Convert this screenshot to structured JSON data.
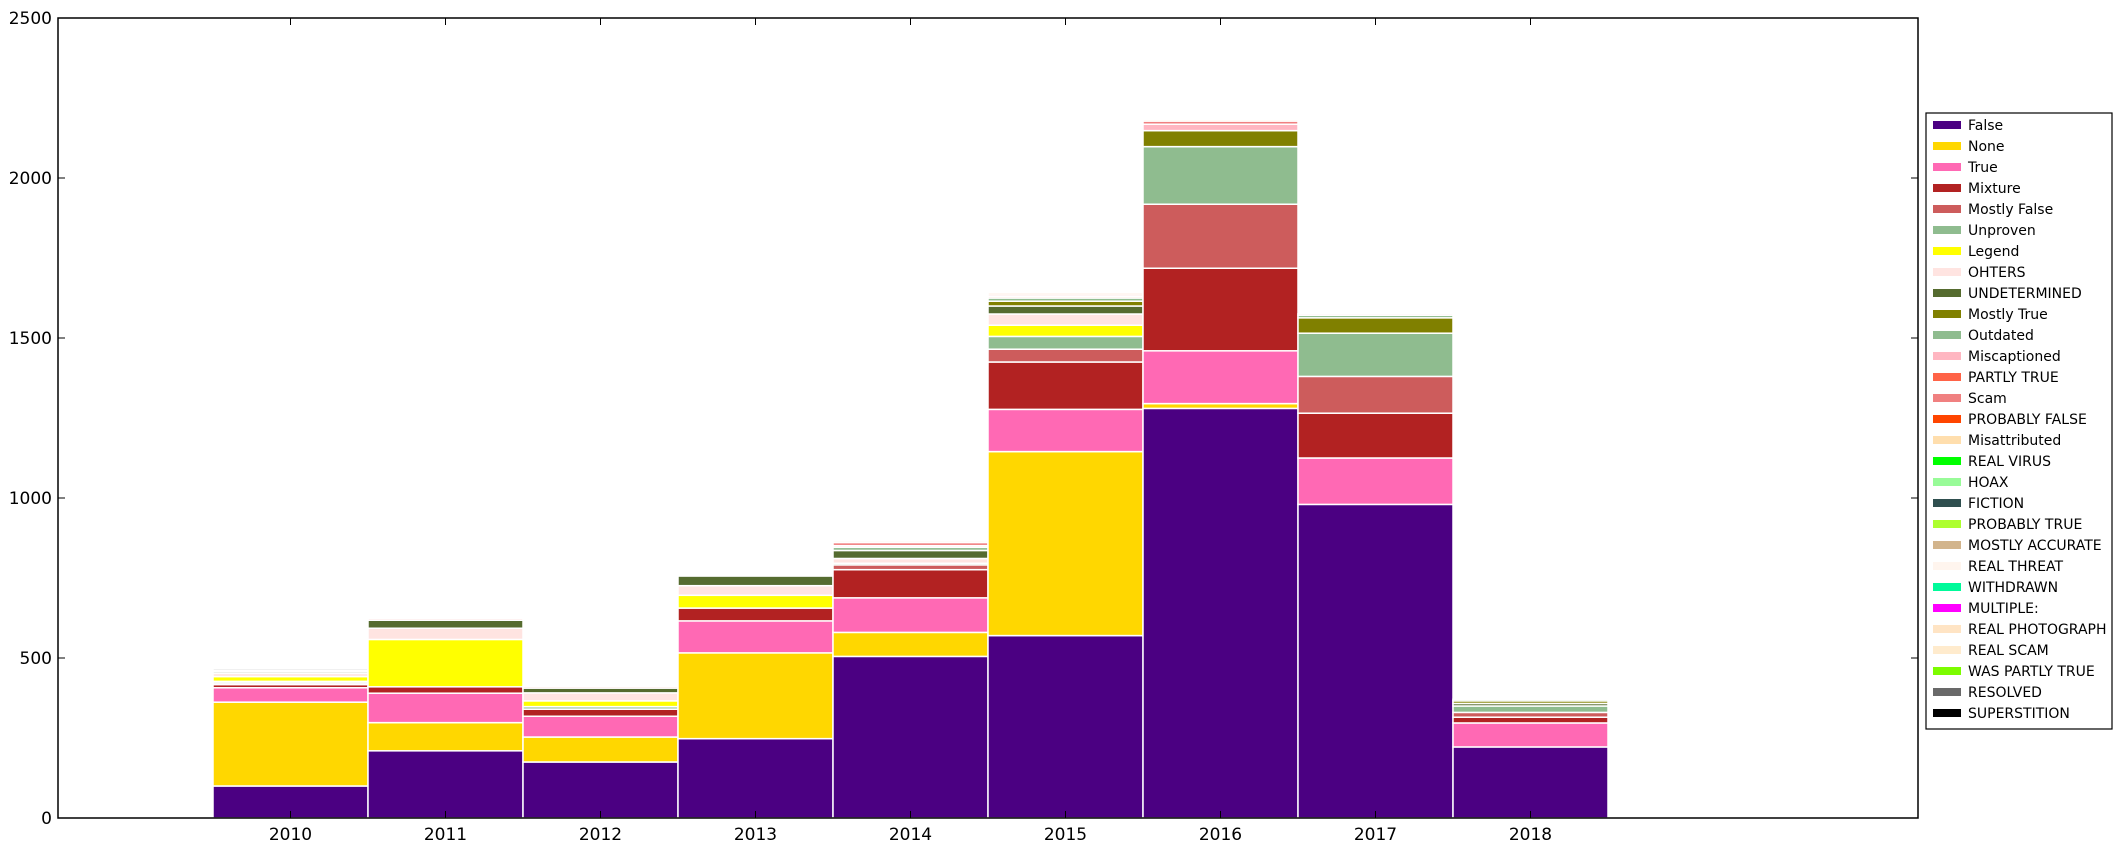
{
  "chart_data": {
    "type": "bar",
    "stacked": true,
    "categories": [
      "2010",
      "2011",
      "2012",
      "2013",
      "2014",
      "2015",
      "2016",
      "2017",
      "2018"
    ],
    "yticks": [
      0,
      500,
      1000,
      1500,
      2000,
      2500
    ],
    "ylim": [
      0,
      2500
    ],
    "xlim_categories_padding": "1.5 empty slots left, 1.5 empty slots right",
    "legend_position": "right",
    "grid": false,
    "series": [
      {
        "name": "False",
        "color": "#4b0082",
        "values": [
          100,
          210,
          175,
          248,
          505,
          570,
          1280,
          980,
          222
        ]
      },
      {
        "name": "None",
        "color": "#ffd700",
        "values": [
          262,
          88,
          78,
          268,
          75,
          575,
          15,
          0,
          0
        ]
      },
      {
        "name": "True",
        "color": "#ff69b4",
        "values": [
          45,
          92,
          65,
          100,
          108,
          132,
          165,
          145,
          75
        ]
      },
      {
        "name": "Mixture",
        "color": "#b22222",
        "values": [
          10,
          20,
          22,
          40,
          88,
          148,
          258,
          140,
          18
        ]
      },
      {
        "name": "Mostly False",
        "color": "#cd5c5c",
        "values": [
          5,
          0,
          0,
          0,
          15,
          40,
          200,
          115,
          15
        ]
      },
      {
        "name": "Unproven",
        "color": "#8fbc8f",
        "values": [
          5,
          0,
          8,
          0,
          5,
          40,
          180,
          135,
          20
        ]
      },
      {
        "name": "Legend",
        "color": "#ffff00",
        "values": [
          15,
          148,
          18,
          40,
          0,
          35,
          0,
          0,
          0
        ]
      },
      {
        "name": "OHTERS",
        "color": "#ffe4e1",
        "values": [
          10,
          35,
          25,
          30,
          15,
          35,
          0,
          0,
          0
        ]
      },
      {
        "name": "UNDETERMINED",
        "color": "#556b2f",
        "values": [
          5,
          25,
          15,
          30,
          25,
          25,
          0,
          0,
          8
        ]
      },
      {
        "name": "Mostly True",
        "color": "#808000",
        "values": [
          0,
          0,
          0,
          0,
          0,
          15,
          50,
          48,
          8
        ]
      },
      {
        "name": "Outdated",
        "color": "#8fbc8f",
        "values": [
          0,
          0,
          0,
          0,
          10,
          10,
          0,
          8,
          5
        ]
      },
      {
        "name": "Miscaptioned",
        "color": "#ffb6c1",
        "values": [
          0,
          0,
          0,
          0,
          0,
          0,
          20,
          5,
          0
        ]
      },
      {
        "name": "PARTLY TRUE",
        "color": "#ff6347",
        "values": [
          0,
          0,
          0,
          0,
          5,
          5,
          0,
          0,
          0
        ]
      },
      {
        "name": "Scam",
        "color": "#f08080",
        "values": [
          0,
          5,
          5,
          0,
          10,
          5,
          10,
          0,
          0
        ]
      },
      {
        "name": "PROBABLY FALSE",
        "color": "#ff4500",
        "values": [
          0,
          0,
          0,
          0,
          0,
          5,
          0,
          0,
          0
        ]
      },
      {
        "name": "Misattributed",
        "color": "#ffdead",
        "values": [
          0,
          0,
          0,
          0,
          5,
          0,
          5,
          0,
          0
        ]
      },
      {
        "name": "REAL VIRUS",
        "color": "#00ff00",
        "values": [
          0,
          0,
          0,
          0,
          0,
          0,
          0,
          0,
          0
        ]
      },
      {
        "name": "HOAX",
        "color": "#98fb98",
        "values": [
          0,
          0,
          0,
          0,
          0,
          0,
          0,
          0,
          0
        ]
      },
      {
        "name": "FICTION",
        "color": "#2f4f4f",
        "values": [
          0,
          0,
          0,
          0,
          0,
          0,
          0,
          0,
          0
        ]
      },
      {
        "name": "PROBABLY TRUE",
        "color": "#adff2f",
        "values": [
          0,
          0,
          0,
          0,
          0,
          0,
          0,
          0,
          0
        ]
      },
      {
        "name": "MOSTLY ACCURATE",
        "color": "#d2b48c",
        "values": [
          0,
          0,
          0,
          0,
          0,
          0,
          0,
          0,
          0
        ]
      },
      {
        "name": "REAL THREAT",
        "color": "#fff5ee",
        "values": [
          5,
          0,
          0,
          0,
          0,
          0,
          0,
          0,
          0
        ]
      },
      {
        "name": "WITHDRAWN",
        "color": "#00fa9a",
        "values": [
          0,
          0,
          0,
          0,
          0,
          0,
          0,
          0,
          0
        ]
      },
      {
        "name": "MULTIPLE:",
        "color": "#ff00ff",
        "values": [
          0,
          0,
          0,
          0,
          0,
          0,
          0,
          0,
          0
        ]
      },
      {
        "name": "REAL PHOTOGRAPH",
        "color": "#ffe4c4",
        "values": [
          0,
          0,
          0,
          0,
          0,
          0,
          0,
          0,
          0
        ]
      },
      {
        "name": "REAL SCAM",
        "color": "#ffebcd",
        "values": [
          0,
          0,
          0,
          0,
          0,
          0,
          0,
          0,
          0
        ]
      },
      {
        "name": "WAS PARTLY TRUE",
        "color": "#7cfc00",
        "values": [
          0,
          0,
          0,
          0,
          0,
          0,
          0,
          0,
          0
        ]
      },
      {
        "name": "RESOLVED",
        "color": "#696969",
        "values": [
          5,
          0,
          0,
          0,
          0,
          0,
          0,
          0,
          0
        ]
      },
      {
        "name": "SUPERSTITION",
        "color": "#000000",
        "values": [
          0,
          0,
          0,
          0,
          0,
          0,
          0,
          0,
          0
        ]
      }
    ]
  }
}
